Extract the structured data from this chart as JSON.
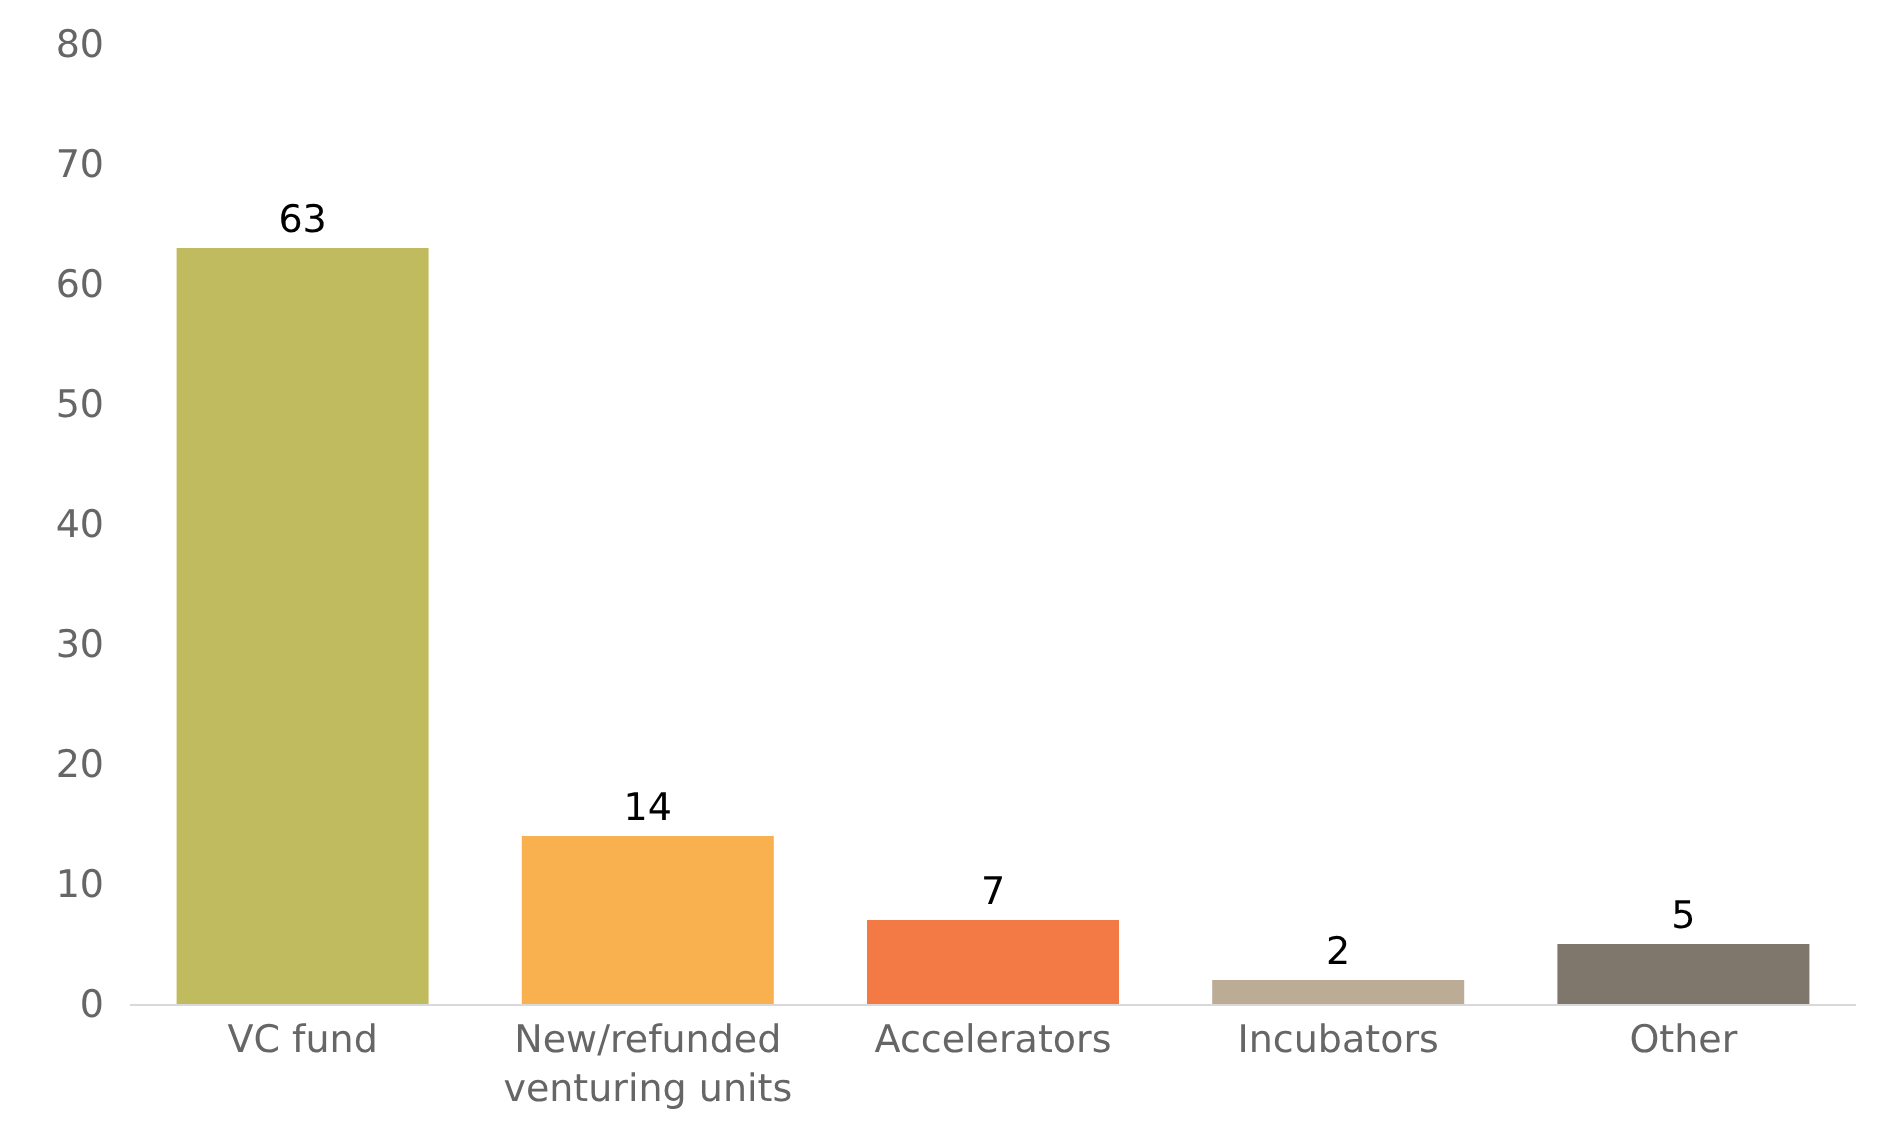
{
  "chart_data": {
    "type": "bar",
    "categories": [
      "VC fund",
      "New/refunded venturing units",
      "Accelerators",
      "Incubators",
      "Other"
    ],
    "values": [
      63,
      14,
      7,
      2,
      5
    ],
    "colors": [
      "#c0bb5f",
      "#f9b04f",
      "#f47a45",
      "#bcac96",
      "#7f766c"
    ],
    "ylim": [
      0,
      80
    ],
    "yticks": [
      0,
      10,
      20,
      30,
      40,
      50,
      60,
      70,
      80
    ],
    "data_labels": true
  }
}
